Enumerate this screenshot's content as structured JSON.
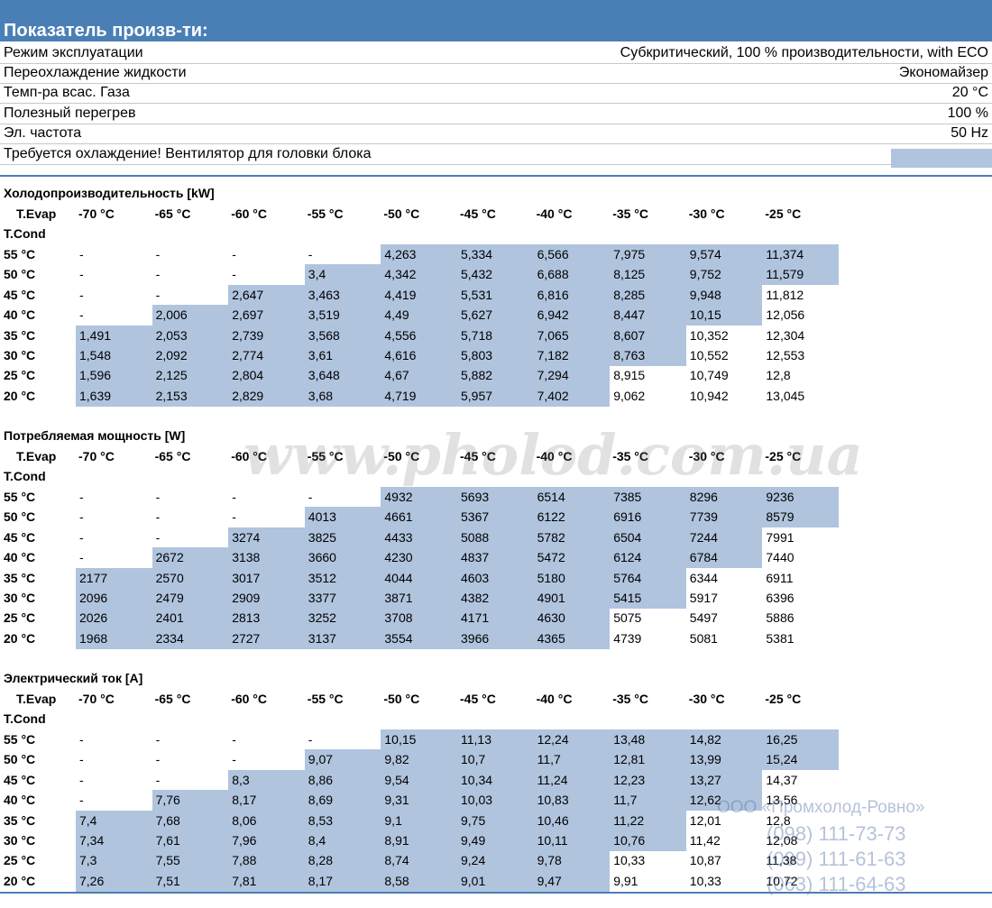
{
  "header": {
    "title": "Показатель произв-ти:"
  },
  "info": [
    {
      "label": "Режим эксплуатации",
      "value": "Субкритический, 100 % производительности, with ECO"
    },
    {
      "label": "Переохлаждение жидкости",
      "value": "Экономайзер"
    },
    {
      "label": "Темп-ра всас. Газа",
      "value": "20 °C"
    },
    {
      "label": "Полезный перегрев",
      "value": "100 %"
    },
    {
      "label": "Эл. частота",
      "value": "50 Hz"
    },
    {
      "label": "Требуется охлаждение! Вентилятор для головки блока",
      "value": ""
    }
  ],
  "tables": [
    {
      "title": "Холодопроизводительность [kW]",
      "evap_label": "T.Evap",
      "cond_label": "T.Cond",
      "columns": [
        "-70 °C",
        "-65 °C",
        "-60 °C",
        "-55 °C",
        "-50 °C",
        "-45 °C",
        "-40 °C",
        "-35 °C",
        "-30 °C",
        "-25 °C"
      ],
      "rows": [
        {
          "label": "55 °C",
          "cells": [
            "-",
            "-",
            "-",
            "-",
            "4,263",
            "5,334",
            "6,566",
            "7,975",
            "9,574",
            "11,374"
          ]
        },
        {
          "label": "50 °C",
          "cells": [
            "-",
            "-",
            "-",
            "3,4",
            "4,342",
            "5,432",
            "6,688",
            "8,125",
            "9,752",
            "11,579"
          ]
        },
        {
          "label": "45 °C",
          "cells": [
            "-",
            "-",
            "2,647",
            "3,463",
            "4,419",
            "5,531",
            "6,816",
            "8,285",
            "9,948",
            "11,812"
          ]
        },
        {
          "label": "40 °C",
          "cells": [
            "-",
            "2,006",
            "2,697",
            "3,519",
            "4,49",
            "5,627",
            "6,942",
            "8,447",
            "10,15",
            "12,056"
          ]
        },
        {
          "label": "35 °C",
          "cells": [
            "1,491",
            "2,053",
            "2,739",
            "3,568",
            "4,556",
            "5,718",
            "7,065",
            "8,607",
            "10,352",
            "12,304"
          ]
        },
        {
          "label": "30 °C",
          "cells": [
            "1,548",
            "2,092",
            "2,774",
            "3,61",
            "4,616",
            "5,803",
            "7,182",
            "8,763",
            "10,552",
            "12,553"
          ]
        },
        {
          "label": "25 °C",
          "cells": [
            "1,596",
            "2,125",
            "2,804",
            "3,648",
            "4,67",
            "5,882",
            "7,294",
            "8,915",
            "10,749",
            "12,8"
          ]
        },
        {
          "label": "20 °C",
          "cells": [
            "1,639",
            "2,153",
            "2,829",
            "3,68",
            "4,719",
            "5,957",
            "7,402",
            "9,062",
            "10,942",
            "13,045"
          ]
        }
      ]
    },
    {
      "title": "Потребляемая мощность [W]",
      "evap_label": "T.Evap",
      "cond_label": "T.Cond",
      "columns": [
        "-70 °C",
        "-65 °C",
        "-60 °C",
        "-55 °C",
        "-50 °C",
        "-45 °C",
        "-40 °C",
        "-35 °C",
        "-30 °C",
        "-25 °C"
      ],
      "rows": [
        {
          "label": "55 °C",
          "cells": [
            "-",
            "-",
            "-",
            "-",
            "4932",
            "5693",
            "6514",
            "7385",
            "8296",
            "9236"
          ]
        },
        {
          "label": "50 °C",
          "cells": [
            "-",
            "-",
            "-",
            "4013",
            "4661",
            "5367",
            "6122",
            "6916",
            "7739",
            "8579"
          ]
        },
        {
          "label": "45 °C",
          "cells": [
            "-",
            "-",
            "3274",
            "3825",
            "4433",
            "5088",
            "5782",
            "6504",
            "7244",
            "7991"
          ]
        },
        {
          "label": "40 °C",
          "cells": [
            "-",
            "2672",
            "3138",
            "3660",
            "4230",
            "4837",
            "5472",
            "6124",
            "6784",
            "7440"
          ]
        },
        {
          "label": "35 °C",
          "cells": [
            "2177",
            "2570",
            "3017",
            "3512",
            "4044",
            "4603",
            "5180",
            "5764",
            "6344",
            "6911"
          ]
        },
        {
          "label": "30 °C",
          "cells": [
            "2096",
            "2479",
            "2909",
            "3377",
            "3871",
            "4382",
            "4901",
            "5415",
            "5917",
            "6396"
          ]
        },
        {
          "label": "25 °C",
          "cells": [
            "2026",
            "2401",
            "2813",
            "3252",
            "3708",
            "4171",
            "4630",
            "5075",
            "5497",
            "5886"
          ]
        },
        {
          "label": "20 °C",
          "cells": [
            "1968",
            "2334",
            "2727",
            "3137",
            "3554",
            "3966",
            "4365",
            "4739",
            "5081",
            "5381"
          ]
        }
      ]
    },
    {
      "title": "Электрический ток [A]",
      "evap_label": "T.Evap",
      "cond_label": "T.Cond",
      "columns": [
        "-70 °C",
        "-65 °C",
        "-60 °C",
        "-55 °C",
        "-50 °C",
        "-45 °C",
        "-40 °C",
        "-35 °C",
        "-30 °C",
        "-25 °C"
      ],
      "rows": [
        {
          "label": "55 °C",
          "cells": [
            "-",
            "-",
            "-",
            "-",
            "10,15",
            "11,13",
            "12,24",
            "13,48",
            "14,82",
            "16,25"
          ]
        },
        {
          "label": "50 °C",
          "cells": [
            "-",
            "-",
            "-",
            "9,07",
            "9,82",
            "10,7",
            "11,7",
            "12,81",
            "13,99",
            "15,24"
          ]
        },
        {
          "label": "45 °C",
          "cells": [
            "-",
            "-",
            "8,3",
            "8,86",
            "9,54",
            "10,34",
            "11,24",
            "12,23",
            "13,27",
            "14,37"
          ]
        },
        {
          "label": "40 °C",
          "cells": [
            "-",
            "7,76",
            "8,17",
            "8,69",
            "9,31",
            "10,03",
            "10,83",
            "11,7",
            "12,62",
            "13,56"
          ]
        },
        {
          "label": "35 °C",
          "cells": [
            "7,4",
            "7,68",
            "8,06",
            "8,53",
            "9,1",
            "9,75",
            "10,46",
            "11,22",
            "12,01",
            "12,8"
          ]
        },
        {
          "label": "30 °C",
          "cells": [
            "7,34",
            "7,61",
            "7,96",
            "8,4",
            "8,91",
            "9,49",
            "10,11",
            "10,76",
            "11,42",
            "12,08"
          ]
        },
        {
          "label": "25 °C",
          "cells": [
            "7,3",
            "7,55",
            "7,88",
            "8,28",
            "8,74",
            "9,24",
            "9,78",
            "10,33",
            "10,87",
            "11,38"
          ]
        },
        {
          "label": "20 °C",
          "cells": [
            "7,26",
            "7,51",
            "7,81",
            "8,17",
            "8,58",
            "9,01",
            "9,47",
            "9,91",
            "10,33",
            "10,72"
          ]
        }
      ]
    }
  ],
  "watermark": {
    "site": "www.pholod.com.ua",
    "company": "ООО «Промхолод-Ровно»",
    "phones": [
      "(098) 111-73-73",
      "(099) 111-61-63",
      "(063) 111-64-63"
    ]
  }
}
